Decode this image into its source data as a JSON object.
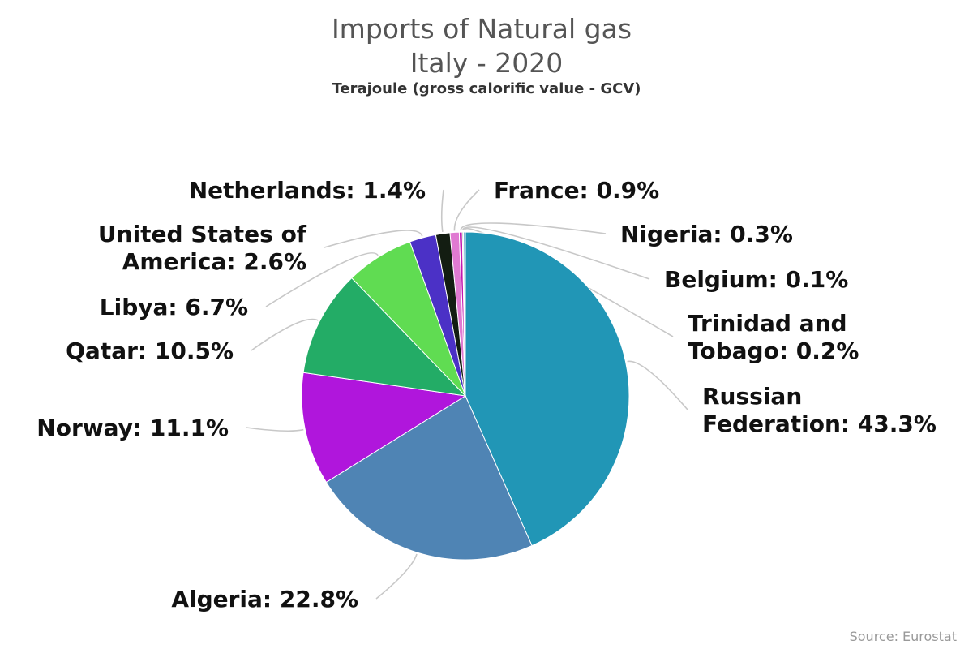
{
  "chart_data": {
    "type": "pie",
    "title": "Imports of Natural gas",
    "title_line2": "Italy - 2020",
    "subtitle": "Terajoule (gross calorific value - GCV)",
    "unit": "%",
    "slices": [
      {
        "name": "Russian Federation",
        "label_lines": [
          "Russian",
          "Federation: 43.3%"
        ],
        "value": 43.3,
        "color": "#2196b6"
      },
      {
        "name": "Algeria",
        "label_lines": [
          "Algeria: 22.8%"
        ],
        "value": 22.8,
        "color": "#4f84b4"
      },
      {
        "name": "Norway",
        "label_lines": [
          "Norway: 11.1%"
        ],
        "value": 11.1,
        "color": "#b016dc"
      },
      {
        "name": "Qatar",
        "label_lines": [
          "Qatar: 10.5%"
        ],
        "value": 10.5,
        "color": "#23ac66"
      },
      {
        "name": "Libya",
        "label_lines": [
          "Libya: 6.7%"
        ],
        "value": 6.7,
        "color": "#60dc52"
      },
      {
        "name": "United States of America",
        "label_lines": [
          "United States of",
          "America: 2.6%"
        ],
        "value": 2.6,
        "color": "#4b31c6"
      },
      {
        "name": "Netherlands",
        "label_lines": [
          "Netherlands: 1.4%"
        ],
        "value": 1.4,
        "color": "#131d12"
      },
      {
        "name": "France",
        "label_lines": [
          "France: 0.9%"
        ],
        "value": 0.9,
        "color": "#e07ad2"
      },
      {
        "name": "Nigeria",
        "label_lines": [
          "Nigeria: 0.3%"
        ],
        "value": 0.3,
        "color": "#c218b0"
      },
      {
        "name": "Belgium",
        "label_lines": [
          "Belgium: 0.1%"
        ],
        "value": 0.1,
        "color": "#2e9b52"
      },
      {
        "name": "Trinidad and Tobago",
        "label_lines": [
          "Trinidad and",
          "Tobago: 0.2%"
        ],
        "value": 0.2,
        "color": "#7fb6d8"
      }
    ]
  },
  "credit": "Source: Eurostat"
}
